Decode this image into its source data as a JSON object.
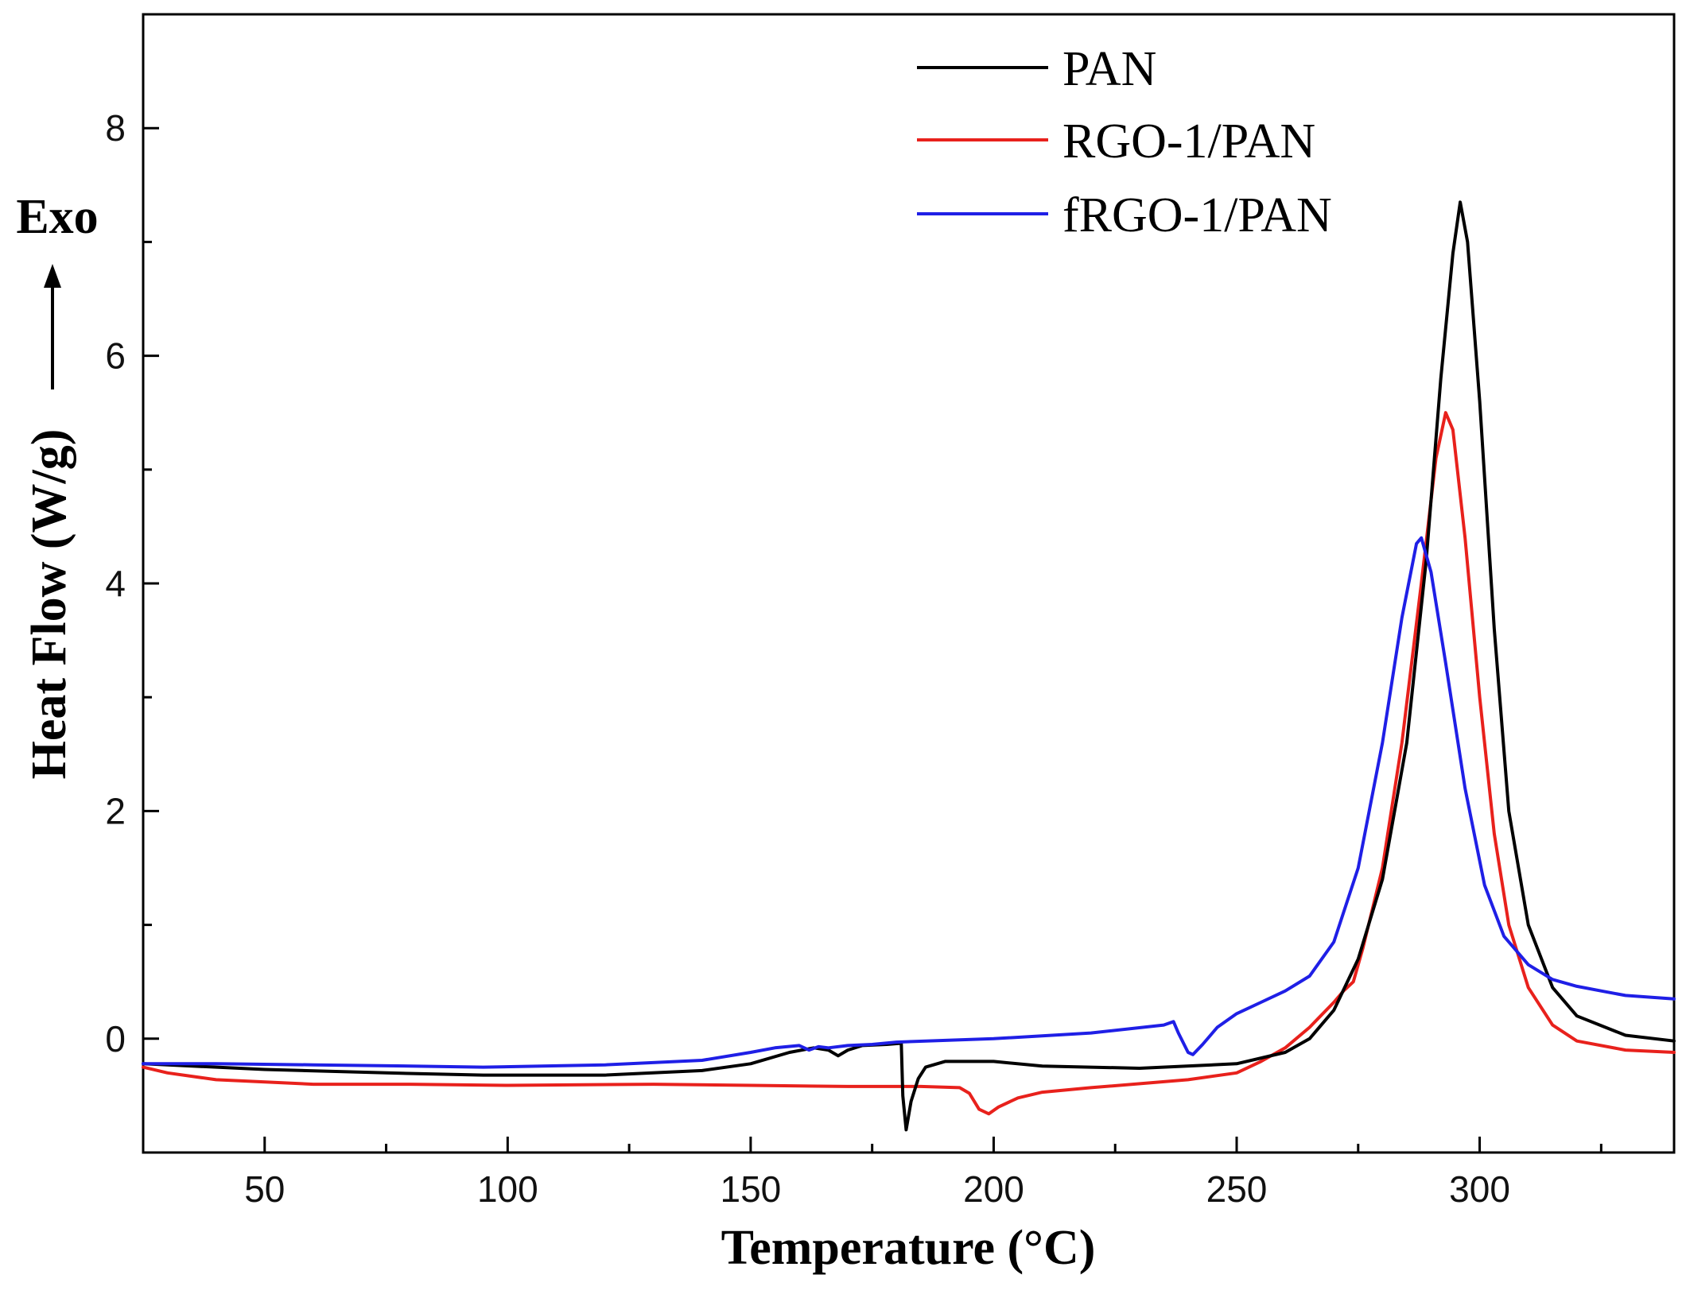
{
  "chart_data": {
    "type": "line",
    "title": "",
    "xlabel": "Temperature (°C)",
    "ylabel": "Heat Flow (W/g)",
    "exo_label": "Exo",
    "xlim": [
      25,
      340
    ],
    "ylim": [
      -1.0,
      9.0
    ],
    "x_ticks": [
      50,
      100,
      150,
      200,
      250,
      300
    ],
    "y_ticks": [
      0,
      2,
      4,
      6,
      8
    ],
    "x_minor_step": 25,
    "y_minor_step": 1,
    "legend_position": "top-right",
    "series": [
      {
        "name": "PAN",
        "color": "#000000",
        "points": [
          [
            25,
            -0.22
          ],
          [
            50,
            -0.27
          ],
          [
            75,
            -0.3
          ],
          [
            95,
            -0.32
          ],
          [
            120,
            -0.32
          ],
          [
            140,
            -0.28
          ],
          [
            150,
            -0.22
          ],
          [
            158,
            -0.12
          ],
          [
            163,
            -0.08
          ],
          [
            166,
            -0.1
          ],
          [
            168,
            -0.15
          ],
          [
            170,
            -0.1
          ],
          [
            173,
            -0.06
          ],
          [
            178,
            -0.05
          ],
          [
            181,
            -0.04
          ],
          [
            181.3,
            -0.5
          ],
          [
            182,
            -0.8
          ],
          [
            183,
            -0.55
          ],
          [
            184.5,
            -0.35
          ],
          [
            186,
            -0.25
          ],
          [
            190,
            -0.2
          ],
          [
            200,
            -0.2
          ],
          [
            210,
            -0.24
          ],
          [
            230,
            -0.26
          ],
          [
            250,
            -0.22
          ],
          [
            260,
            -0.12
          ],
          [
            265,
            0.0
          ],
          [
            270,
            0.25
          ],
          [
            275,
            0.7
          ],
          [
            280,
            1.4
          ],
          [
            285,
            2.6
          ],
          [
            289,
            4.2
          ],
          [
            292,
            5.8
          ],
          [
            294.5,
            6.9
          ],
          [
            296,
            7.35
          ],
          [
            297.5,
            7.0
          ],
          [
            300,
            5.6
          ],
          [
            303,
            3.6
          ],
          [
            306,
            2.0
          ],
          [
            310,
            1.0
          ],
          [
            315,
            0.45
          ],
          [
            320,
            0.2
          ],
          [
            330,
            0.03
          ],
          [
            340,
            -0.02
          ]
        ]
      },
      {
        "name": "RGO-1/PAN",
        "color": "#e8211c",
        "points": [
          [
            25,
            -0.25
          ],
          [
            30,
            -0.3
          ],
          [
            40,
            -0.36
          ],
          [
            60,
            -0.4
          ],
          [
            80,
            -0.4
          ],
          [
            100,
            -0.41
          ],
          [
            130,
            -0.4
          ],
          [
            150,
            -0.41
          ],
          [
            170,
            -0.42
          ],
          [
            185,
            -0.42
          ],
          [
            193,
            -0.43
          ],
          [
            195,
            -0.48
          ],
          [
            197,
            -0.62
          ],
          [
            199,
            -0.66
          ],
          [
            201,
            -0.6
          ],
          [
            205,
            -0.52
          ],
          [
            210,
            -0.47
          ],
          [
            220,
            -0.43
          ],
          [
            240,
            -0.36
          ],
          [
            250,
            -0.3
          ],
          [
            255,
            -0.2
          ],
          [
            260,
            -0.08
          ],
          [
            265,
            0.1
          ],
          [
            270,
            0.32
          ],
          [
            272,
            0.42
          ],
          [
            274,
            0.5
          ],
          [
            276,
            0.8
          ],
          [
            280,
            1.5
          ],
          [
            284,
            2.6
          ],
          [
            288,
            4.0
          ],
          [
            291,
            5.1
          ],
          [
            293,
            5.5
          ],
          [
            294.5,
            5.35
          ],
          [
            297,
            4.4
          ],
          [
            300,
            3.0
          ],
          [
            303,
            1.8
          ],
          [
            306,
            1.0
          ],
          [
            310,
            0.45
          ],
          [
            315,
            0.12
          ],
          [
            320,
            -0.02
          ],
          [
            330,
            -0.1
          ],
          [
            340,
            -0.12
          ]
        ]
      },
      {
        "name": "fRGO-1/PAN",
        "color": "#1f1fe6",
        "points": [
          [
            25,
            -0.22
          ],
          [
            40,
            -0.22
          ],
          [
            60,
            -0.23
          ],
          [
            80,
            -0.24
          ],
          [
            95,
            -0.25
          ],
          [
            120,
            -0.23
          ],
          [
            140,
            -0.19
          ],
          [
            150,
            -0.12
          ],
          [
            155,
            -0.08
          ],
          [
            160,
            -0.06
          ],
          [
            162,
            -0.1
          ],
          [
            164,
            -0.07
          ],
          [
            166,
            -0.08
          ],
          [
            170,
            -0.06
          ],
          [
            175,
            -0.05
          ],
          [
            180,
            -0.03
          ],
          [
            200,
            0.0
          ],
          [
            220,
            0.05
          ],
          [
            235,
            0.12
          ],
          [
            237,
            0.15
          ],
          [
            238,
            0.05
          ],
          [
            240,
            -0.12
          ],
          [
            241,
            -0.14
          ],
          [
            243,
            -0.05
          ],
          [
            246,
            0.1
          ],
          [
            250,
            0.22
          ],
          [
            255,
            0.32
          ],
          [
            260,
            0.42
          ],
          [
            265,
            0.55
          ],
          [
            270,
            0.85
          ],
          [
            275,
            1.5
          ],
          [
            280,
            2.6
          ],
          [
            284,
            3.7
          ],
          [
            287,
            4.35
          ],
          [
            288,
            4.4
          ],
          [
            290,
            4.1
          ],
          [
            293,
            3.3
          ],
          [
            297,
            2.2
          ],
          [
            301,
            1.35
          ],
          [
            305,
            0.9
          ],
          [
            310,
            0.65
          ],
          [
            315,
            0.52
          ],
          [
            320,
            0.46
          ],
          [
            325,
            0.42
          ],
          [
            330,
            0.38
          ],
          [
            340,
            0.35
          ]
        ]
      }
    ]
  }
}
